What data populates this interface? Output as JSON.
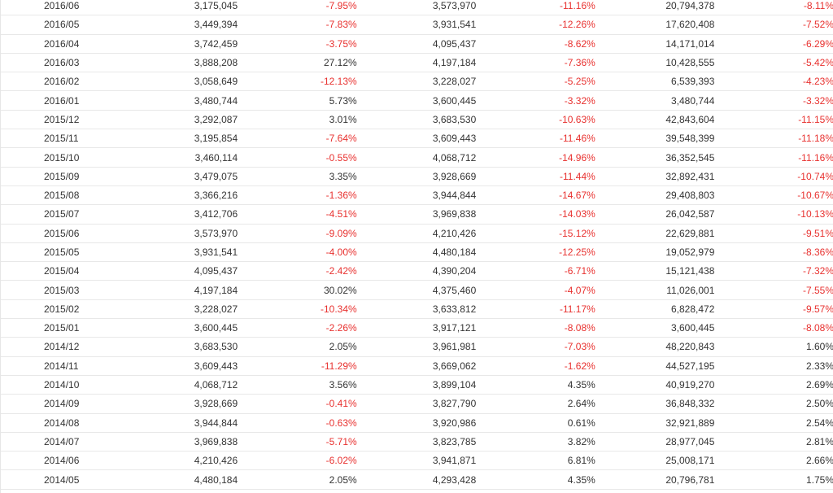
{
  "colors": {
    "negative": "#e8312f",
    "positive": "#333333",
    "border": "#e8e8e8"
  },
  "rows": [
    {
      "month": "2016/06",
      "v1": "3,175,045",
      "p1": "-7.95%",
      "v2": "3,573,970",
      "p2": "-11.16%",
      "v3": "20,794,378",
      "p3": "-8.11%"
    },
    {
      "month": "2016/05",
      "v1": "3,449,394",
      "p1": "-7.83%",
      "v2": "3,931,541",
      "p2": "-12.26%",
      "v3": "17,620,408",
      "p3": "-7.52%"
    },
    {
      "month": "2016/04",
      "v1": "3,742,459",
      "p1": "-3.75%",
      "v2": "4,095,437",
      "p2": "-8.62%",
      "v3": "14,171,014",
      "p3": "-6.29%"
    },
    {
      "month": "2016/03",
      "v1": "3,888,208",
      "p1": "27.12%",
      "v2": "4,197,184",
      "p2": "-7.36%",
      "v3": "10,428,555",
      "p3": "-5.42%"
    },
    {
      "month": "2016/02",
      "v1": "3,058,649",
      "p1": "-12.13%",
      "v2": "3,228,027",
      "p2": "-5.25%",
      "v3": "6,539,393",
      "p3": "-4.23%"
    },
    {
      "month": "2016/01",
      "v1": "3,480,744",
      "p1": "5.73%",
      "v2": "3,600,445",
      "p2": "-3.32%",
      "v3": "3,480,744",
      "p3": "-3.32%"
    },
    {
      "month": "2015/12",
      "v1": "3,292,087",
      "p1": "3.01%",
      "v2": "3,683,530",
      "p2": "-10.63%",
      "v3": "42,843,604",
      "p3": "-11.15%"
    },
    {
      "month": "2015/11",
      "v1": "3,195,854",
      "p1": "-7.64%",
      "v2": "3,609,443",
      "p2": "-11.46%",
      "v3": "39,548,399",
      "p3": "-11.18%"
    },
    {
      "month": "2015/10",
      "v1": "3,460,114",
      "p1": "-0.55%",
      "v2": "4,068,712",
      "p2": "-14.96%",
      "v3": "36,352,545",
      "p3": "-11.16%"
    },
    {
      "month": "2015/09",
      "v1": "3,479,075",
      "p1": "3.35%",
      "v2": "3,928,669",
      "p2": "-11.44%",
      "v3": "32,892,431",
      "p3": "-10.74%"
    },
    {
      "month": "2015/08",
      "v1": "3,366,216",
      "p1": "-1.36%",
      "v2": "3,944,844",
      "p2": "-14.67%",
      "v3": "29,408,803",
      "p3": "-10.67%"
    },
    {
      "month": "2015/07",
      "v1": "3,412,706",
      "p1": "-4.51%",
      "v2": "3,969,838",
      "p2": "-14.03%",
      "v3": "26,042,587",
      "p3": "-10.13%"
    },
    {
      "month": "2015/06",
      "v1": "3,573,970",
      "p1": "-9.09%",
      "v2": "4,210,426",
      "p2": "-15.12%",
      "v3": "22,629,881",
      "p3": "-9.51%"
    },
    {
      "month": "2015/05",
      "v1": "3,931,541",
      "p1": "-4.00%",
      "v2": "4,480,184",
      "p2": "-12.25%",
      "v3": "19,052,979",
      "p3": "-8.36%"
    },
    {
      "month": "2015/04",
      "v1": "4,095,437",
      "p1": "-2.42%",
      "v2": "4,390,204",
      "p2": "-6.71%",
      "v3": "15,121,438",
      "p3": "-7.32%"
    },
    {
      "month": "2015/03",
      "v1": "4,197,184",
      "p1": "30.02%",
      "v2": "4,375,460",
      "p2": "-4.07%",
      "v3": "11,026,001",
      "p3": "-7.55%"
    },
    {
      "month": "2015/02",
      "v1": "3,228,027",
      "p1": "-10.34%",
      "v2": "3,633,812",
      "p2": "-11.17%",
      "v3": "6,828,472",
      "p3": "-9.57%"
    },
    {
      "month": "2015/01",
      "v1": "3,600,445",
      "p1": "-2.26%",
      "v2": "3,917,121",
      "p2": "-8.08%",
      "v3": "3,600,445",
      "p3": "-8.08%"
    },
    {
      "month": "2014/12",
      "v1": "3,683,530",
      "p1": "2.05%",
      "v2": "3,961,981",
      "p2": "-7.03%",
      "v3": "48,220,843",
      "p3": "1.60%"
    },
    {
      "month": "2014/11",
      "v1": "3,609,443",
      "p1": "-11.29%",
      "v2": "3,669,062",
      "p2": "-1.62%",
      "v3": "44,527,195",
      "p3": "2.33%"
    },
    {
      "month": "2014/10",
      "v1": "4,068,712",
      "p1": "3.56%",
      "v2": "3,899,104",
      "p2": "4.35%",
      "v3": "40,919,270",
      "p3": "2.69%"
    },
    {
      "month": "2014/09",
      "v1": "3,928,669",
      "p1": "-0.41%",
      "v2": "3,827,790",
      "p2": "2.64%",
      "v3": "36,848,332",
      "p3": "2.50%"
    },
    {
      "month": "2014/08",
      "v1": "3,944,844",
      "p1": "-0.63%",
      "v2": "3,920,986",
      "p2": "0.61%",
      "v3": "32,921,889",
      "p3": "2.54%"
    },
    {
      "month": "2014/07",
      "v1": "3,969,838",
      "p1": "-5.71%",
      "v2": "3,823,785",
      "p2": "3.82%",
      "v3": "28,977,045",
      "p3": "2.81%"
    },
    {
      "month": "2014/06",
      "v1": "4,210,426",
      "p1": "-6.02%",
      "v2": "3,941,871",
      "p2": "6.81%",
      "v3": "25,008,171",
      "p3": "2.66%"
    },
    {
      "month": "2014/05",
      "v1": "4,480,184",
      "p1": "2.05%",
      "v2": "4,293,428",
      "p2": "4.35%",
      "v3": "20,796,781",
      "p3": "1.75%"
    }
  ]
}
